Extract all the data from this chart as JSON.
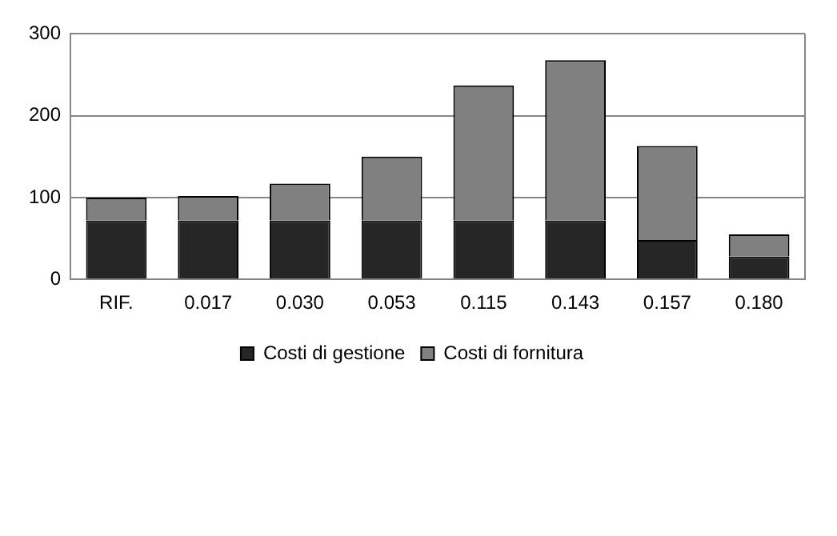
{
  "chart_data": {
    "type": "bar",
    "stacked": true,
    "categories": [
      "RIF.",
      "0.017",
      "0.030",
      "0.053",
      "0.115",
      "0.143",
      "0.157",
      "0.180"
    ],
    "series": [
      {
        "name": "Costi di gestione",
        "color": "#262626",
        "values": [
          72,
          72,
          72,
          72,
          72,
          72,
          48,
          28
        ]
      },
      {
        "name": "Costi di fornitura",
        "color": "#808080",
        "values": [
          28,
          30,
          45,
          78,
          165,
          196,
          115,
          27
        ]
      }
    ],
    "ylim": [
      0,
      300
    ],
    "yticks": [
      0,
      100,
      200,
      300
    ],
    "grid": "y",
    "legend": "bottom"
  }
}
